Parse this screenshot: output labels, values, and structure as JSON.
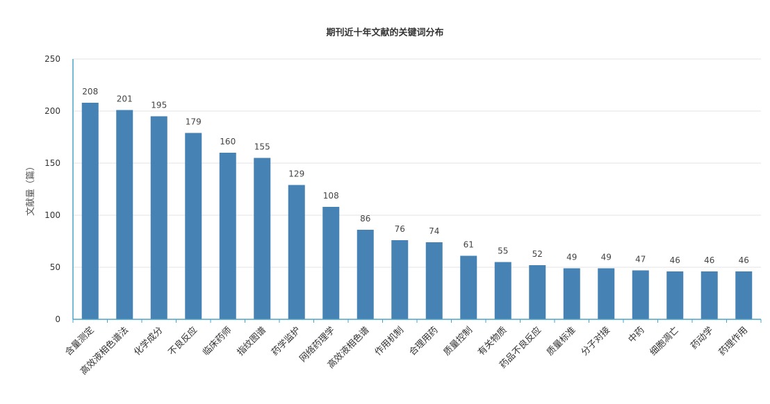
{
  "chart_data": {
    "type": "bar",
    "title": "期刊近十年文献的关键词分布",
    "xlabel": "",
    "ylabel": "文献量（篇）",
    "ylim": [
      0,
      250
    ],
    "yticks": [
      0,
      50,
      100,
      150,
      200,
      250
    ],
    "grid": true,
    "legend": "none",
    "bar_color": "#4682b4",
    "categories": [
      "含量测定",
      "高效液相色谱法",
      "化学成分",
      "不良反应",
      "临床药师",
      "指纹图谱",
      "药学监护",
      "网络药理学",
      "高效液相色谱",
      "作用机制",
      "合理用药",
      "质量控制",
      "有关物质",
      "药品不良反应",
      "质量标准",
      "分子对接",
      "中药",
      "细胞凋亡",
      "药动学",
      "药理作用"
    ],
    "values": [
      208,
      201,
      195,
      179,
      160,
      155,
      129,
      108,
      86,
      76,
      74,
      61,
      55,
      52,
      49,
      49,
      47,
      46,
      46,
      46
    ]
  }
}
